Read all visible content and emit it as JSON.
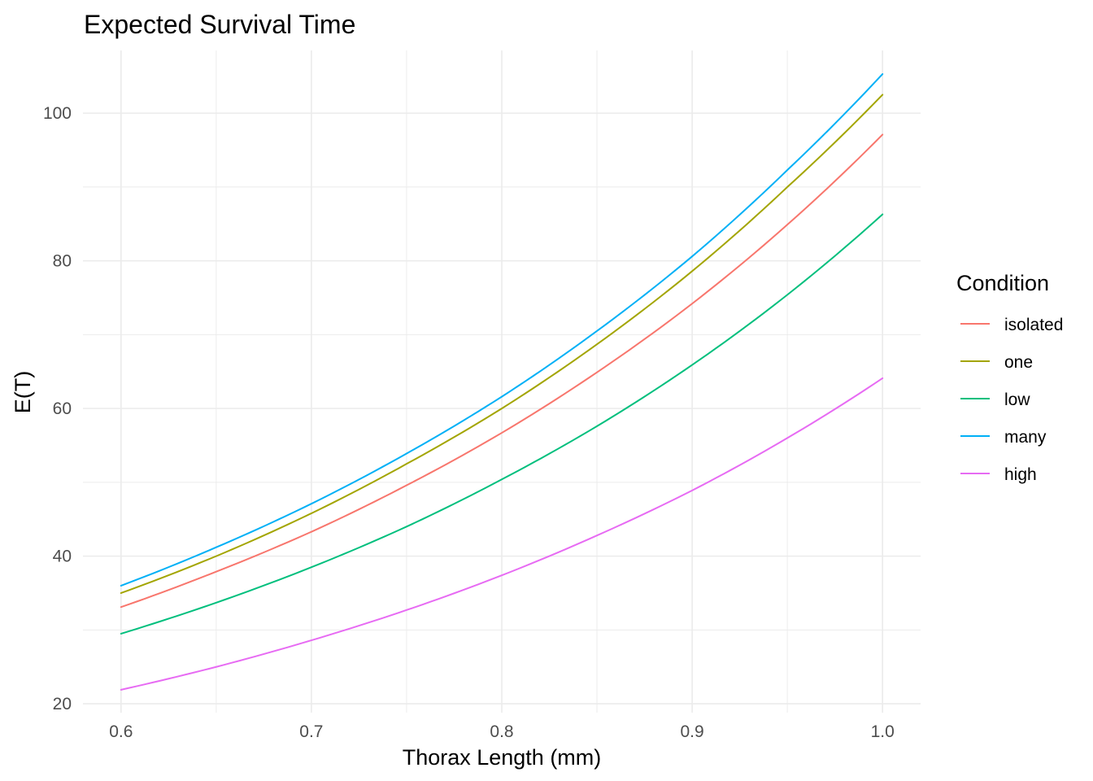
{
  "chart_data": {
    "type": "line",
    "title": "Expected Survival Time",
    "xlabel": "Thorax Length (mm)",
    "ylabel": "E(T)",
    "xlim": [
      0.58,
      1.02
    ],
    "ylim": [
      18.8,
      108.5
    ],
    "x_ticks": [
      0.6,
      0.7,
      0.8,
      0.9,
      1.0
    ],
    "x_tick_labels": [
      "0.6",
      "0.7",
      "0.8",
      "0.9",
      "1.0"
    ],
    "y_ticks": [
      20,
      40,
      60,
      80,
      100
    ],
    "y_tick_labels": [
      "20",
      "40",
      "60",
      "80",
      "100"
    ],
    "grid": true,
    "legend": {
      "title": "Condition",
      "position": "right"
    },
    "x": [
      0.6,
      0.65,
      0.7,
      0.75,
      0.8,
      0.85,
      0.9,
      0.95,
      1.0
    ],
    "series": [
      {
        "name": "isolated",
        "color": "#F8766D",
        "values": [
          33.1,
          37.9,
          43.3,
          49.6,
          56.7,
          64.9,
          74.2,
          84.9,
          97.1
        ]
      },
      {
        "name": "one",
        "color": "#A3A500",
        "values": [
          35.0,
          40.0,
          45.8,
          52.5,
          60.0,
          68.7,
          78.6,
          90.0,
          102.5
        ]
      },
      {
        "name": "low",
        "color": "#00BF7D",
        "values": [
          29.5,
          33.7,
          38.5,
          44.0,
          50.4,
          57.6,
          65.9,
          75.4,
          86.3
        ]
      },
      {
        "name": "many",
        "color": "#00B0F6",
        "values": [
          36.0,
          41.2,
          47.1,
          53.9,
          61.6,
          70.5,
          80.6,
          92.3,
          105.3
        ]
      },
      {
        "name": "high",
        "color": "#E76BF3",
        "values": [
          21.9,
          25.0,
          28.6,
          32.7,
          37.4,
          42.8,
          48.9,
          56.0,
          64.1
        ]
      }
    ]
  }
}
